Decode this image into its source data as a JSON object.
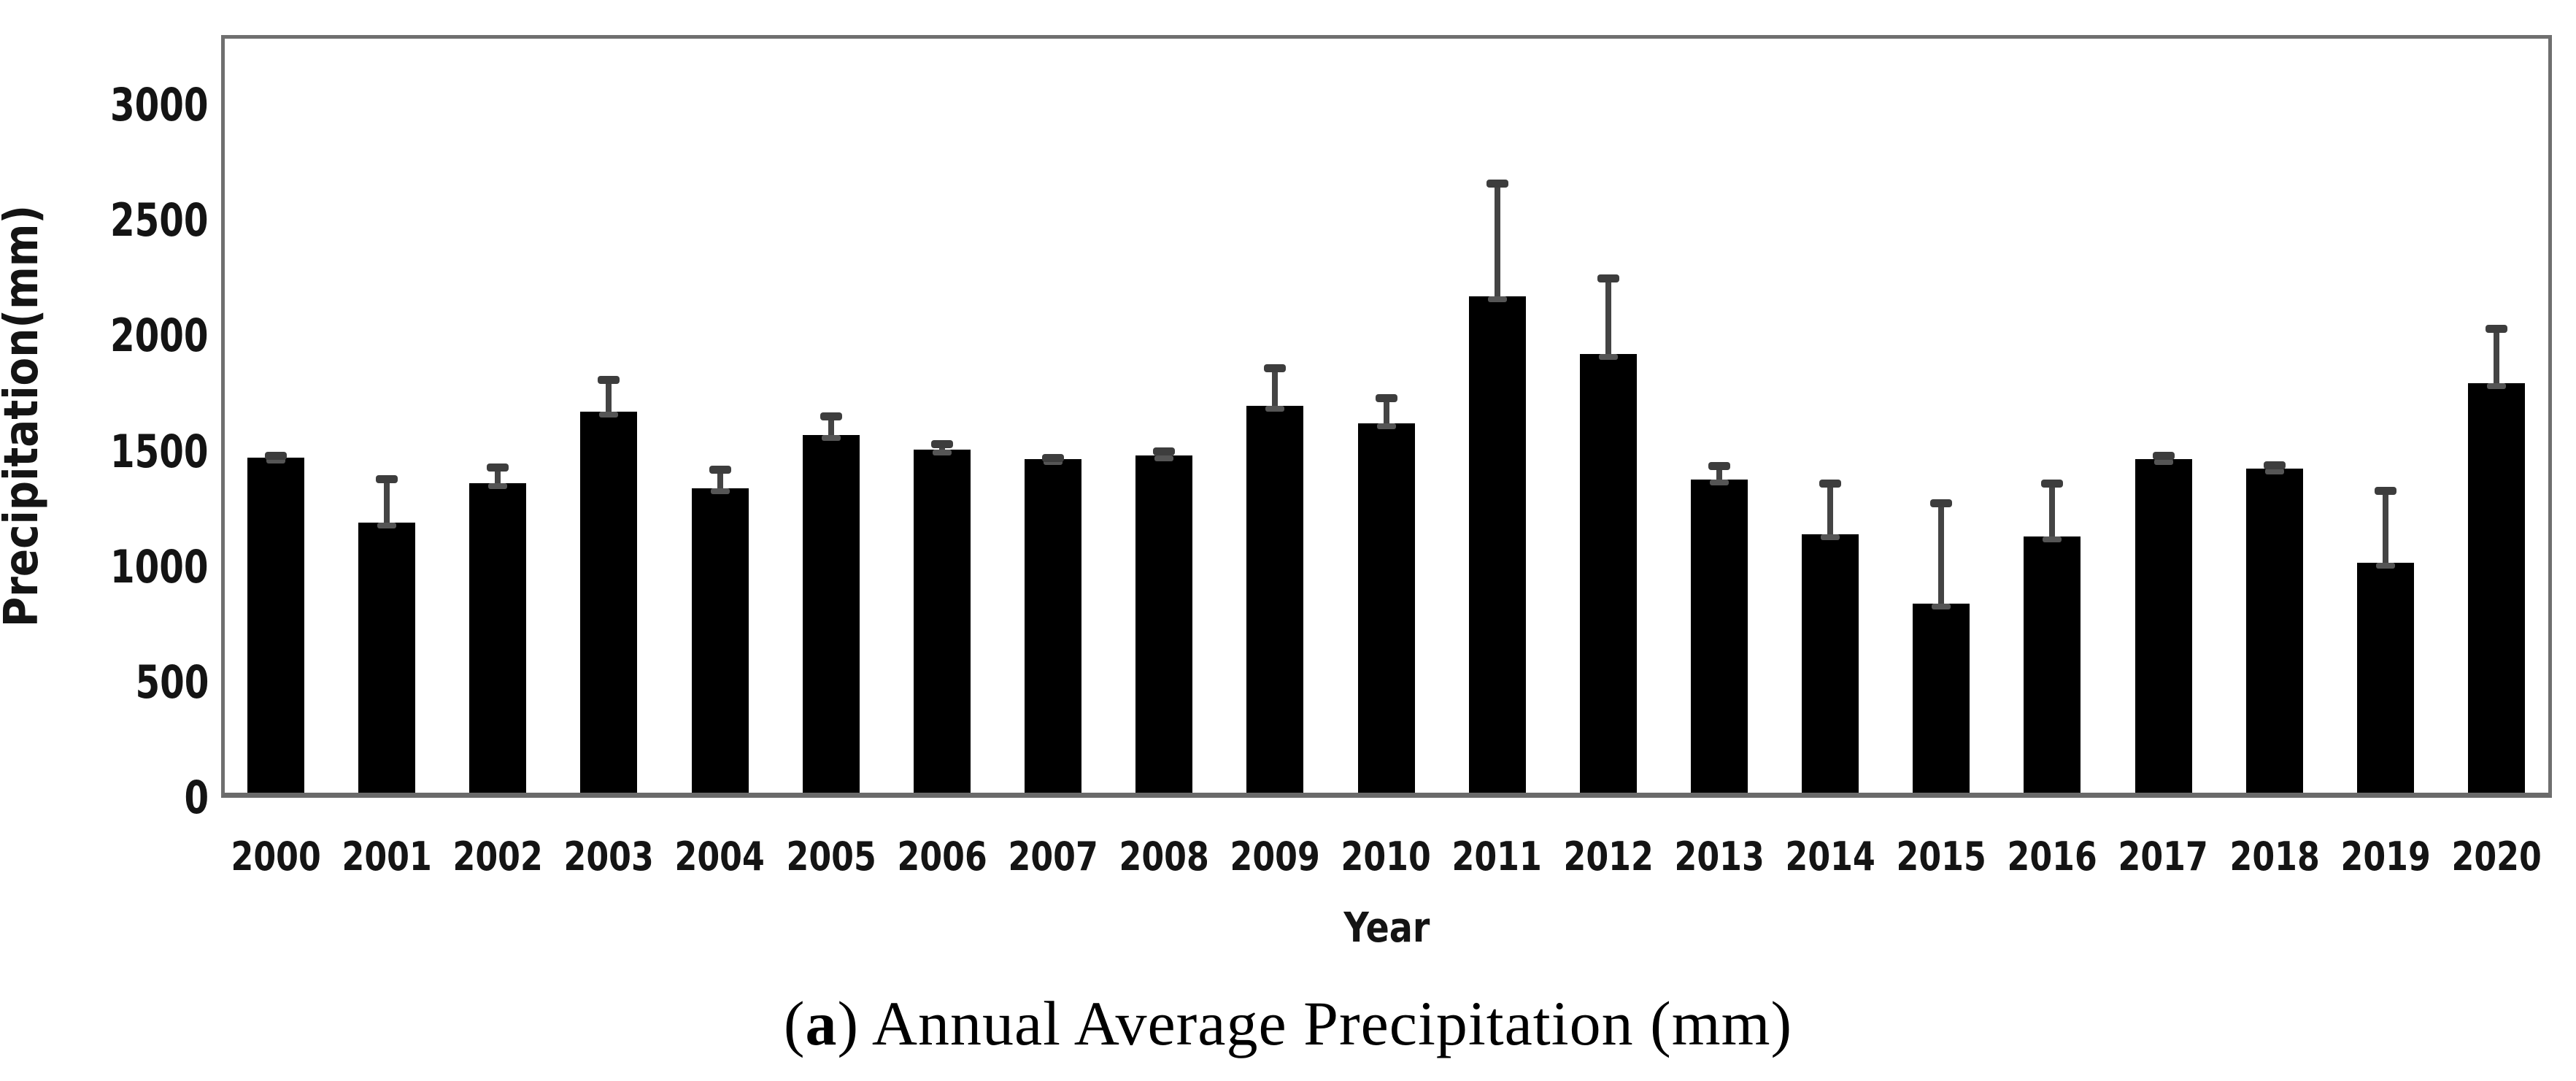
{
  "figure": {
    "caption": {
      "open": "(",
      "label": "a",
      "rest": ") Annual Average Precipitation (mm)"
    }
  },
  "chart_data": {
    "type": "bar",
    "title": "(a) Annual Average Precipitation (mm)",
    "xlabel": "Year",
    "ylabel": "Precipitation(mm)",
    "categories": [
      "2000",
      "2001",
      "2002",
      "2003",
      "2004",
      "2005",
      "2006",
      "2007",
      "2008",
      "2009",
      "2010",
      "2011",
      "2012",
      "2013",
      "2014",
      "2015",
      "2016",
      "2017",
      "2018",
      "2019",
      "2020"
    ],
    "series": [
      {
        "name": "Annual average precipitation (mm)",
        "values": [
          1450,
          1170,
          1340,
          1650,
          1320,
          1550,
          1485,
          1445,
          1460,
          1675,
          1600,
          2150,
          1900,
          1355,
          1120,
          820,
          1110,
          1445,
          1405,
          995,
          1775
        ],
        "error_upper": [
          20,
          200,
          80,
          150,
          90,
          90,
          35,
          15,
          30,
          175,
          120,
          500,
          340,
          70,
          230,
          445,
          240,
          25,
          25,
          325,
          245
        ]
      }
    ],
    "y_ticks": [
      0,
      500,
      1000,
      1500,
      2000,
      2500,
      3000
    ],
    "ylim": [
      0,
      3266
    ],
    "grid": false,
    "legend": "none",
    "error_bars": "upper-only",
    "colors": {
      "bar": "#000000",
      "error_bar": "#3d3d3d",
      "axis_frame": "#6f6f6f",
      "text": "#141414",
      "background": "#ffffff"
    }
  }
}
